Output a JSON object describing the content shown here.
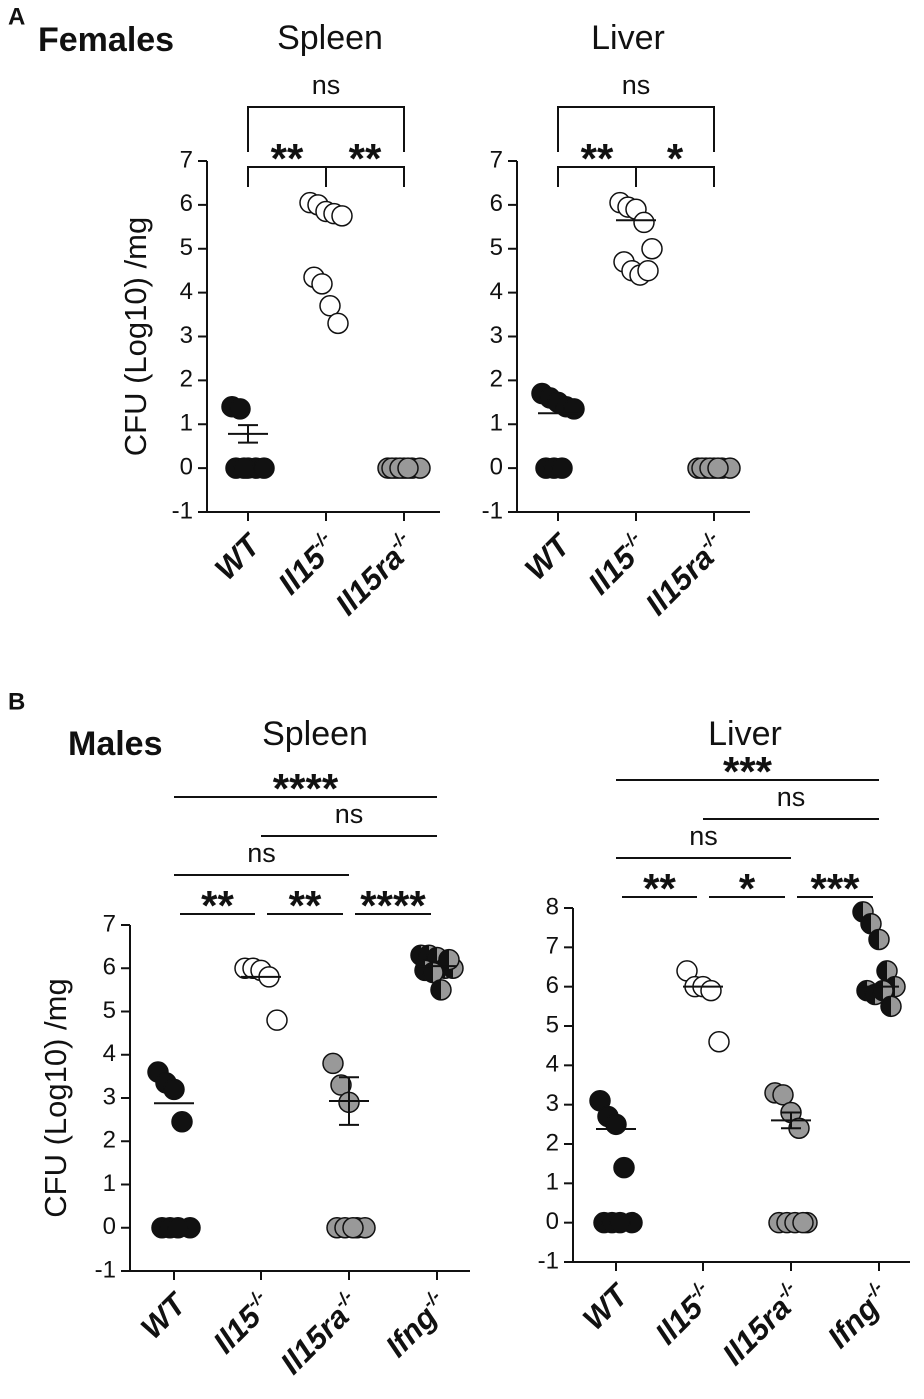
{
  "panels": [
    {
      "letter": "A",
      "title": "Females"
    },
    {
      "letter": "B",
      "title": "Males"
    }
  ],
  "chart_data": [
    {
      "type": "dot",
      "title": "Spleen",
      "ylabel": "CFU (Log10) /mg",
      "categories": [
        "WT",
        "Il15",
        "Il15ra"
      ],
      "category_superscripts": [
        null,
        "-/-",
        "-/-"
      ],
      "colors": [
        "#111111",
        "#ffffff",
        "#999999"
      ],
      "values": [
        [
          1.4,
          1.35,
          0,
          0,
          0,
          0,
          0
        ],
        [
          6.05,
          6.0,
          5.85,
          5.8,
          5.75,
          4.35,
          4.2,
          3.7,
          3.3
        ],
        [
          0,
          0,
          0,
          0,
          0,
          0,
          0,
          0
        ]
      ],
      "means": [
        0.78,
        null,
        null
      ],
      "errors": [
        0.2,
        null,
        null
      ],
      "ylim": [
        -1,
        7
      ],
      "yticks": [
        -1,
        0,
        1,
        2,
        3,
        4,
        5,
        6,
        7
      ],
      "comparisons": [
        {
          "groups": [
            "WT",
            "Il15"
          ],
          "label": "**"
        },
        {
          "groups": [
            "Il15",
            "Il15ra"
          ],
          "label": "**"
        },
        {
          "groups": [
            "WT",
            "Il15ra"
          ],
          "label": "ns"
        }
      ],
      "bracket_style": "drop"
    },
    {
      "type": "dot",
      "title": "Liver",
      "categories": [
        "WT",
        "Il15",
        "Il15ra"
      ],
      "category_superscripts": [
        null,
        "-/-",
        "-/-"
      ],
      "colors": [
        "#111111",
        "#ffffff",
        "#999999"
      ],
      "values": [
        [
          1.7,
          1.6,
          1.5,
          1.4,
          1.35,
          0,
          0,
          0
        ],
        [
          6.05,
          5.95,
          5.9,
          5.6,
          5.0,
          4.7,
          4.5,
          4.4,
          4.5
        ],
        [
          0,
          0,
          0,
          0,
          0,
          0,
          0,
          0
        ]
      ],
      "means": [
        1.25,
        5.65,
        null
      ],
      "errors": [
        null,
        null,
        null
      ],
      "ylim": [
        -1,
        7
      ],
      "yticks": [
        -1,
        0,
        1,
        2,
        3,
        4,
        5,
        6,
        7
      ],
      "comparisons": [
        {
          "groups": [
            "WT",
            "Il15"
          ],
          "label": "**"
        },
        {
          "groups": [
            "Il15",
            "Il15ra"
          ],
          "label": "*"
        },
        {
          "groups": [
            "WT",
            "Il15ra"
          ],
          "label": "ns"
        }
      ],
      "bracket_style": "drop"
    },
    {
      "type": "dot",
      "title": "Spleen",
      "ylabel": "CFU (Log10) /mg",
      "categories": [
        "WT",
        "Il15",
        "Il15ra",
        "Ifng"
      ],
      "category_superscripts": [
        null,
        "-/-",
        "-/-",
        "-/-"
      ],
      "colors": [
        "#111111",
        "#ffffff",
        "#999999",
        [
          "#111111",
          "#999999"
        ]
      ],
      "values": [
        [
          3.6,
          3.35,
          3.2,
          2.45,
          0,
          0,
          0,
          0
        ],
        [
          6.0,
          6.0,
          5.95,
          5.8,
          4.8
        ],
        [
          3.8,
          3.3,
          2.9,
          0,
          0,
          0,
          0,
          0
        ],
        [
          6.3,
          6.3,
          6.25,
          6.0,
          6.0,
          5.95,
          5.9,
          5.5,
          6.2
        ]
      ],
      "means": [
        2.88,
        5.8,
        2.93,
        6.05
      ],
      "errors": [
        null,
        null,
        0.55,
        null
      ],
      "ylim": [
        -1,
        7
      ],
      "yticks": [
        -1,
        0,
        1,
        2,
        3,
        4,
        5,
        6,
        7
      ],
      "comparisons": [
        {
          "groups": [
            "WT",
            "Il15"
          ],
          "label": "**"
        },
        {
          "groups": [
            "Il15",
            "Il15ra"
          ],
          "label": "**"
        },
        {
          "groups": [
            "Il15ra",
            "Ifng"
          ],
          "label": "****"
        },
        {
          "groups": [
            "WT",
            "Il15ra"
          ],
          "label": "ns"
        },
        {
          "groups": [
            "Il15",
            "Ifng"
          ],
          "label": "ns"
        },
        {
          "groups": [
            "WT",
            "Ifng"
          ],
          "label": "****"
        }
      ],
      "bracket_style": "line"
    },
    {
      "type": "dot",
      "title": "Liver",
      "categories": [
        "WT",
        "Il15",
        "Il15ra",
        "Ifng"
      ],
      "category_superscripts": [
        null,
        "-/-",
        "-/-",
        "-/-"
      ],
      "colors": [
        "#111111",
        "#ffffff",
        "#999999",
        [
          "#111111",
          "#999999"
        ]
      ],
      "values": [
        [
          3.1,
          2.7,
          2.5,
          1.4,
          0,
          0,
          0,
          0
        ],
        [
          6.4,
          6.0,
          6.0,
          5.9,
          4.6
        ],
        [
          3.3,
          3.25,
          2.8,
          2.4,
          0,
          0,
          0,
          0,
          0
        ],
        [
          7.9,
          7.6,
          7.2,
          6.4,
          6.0,
          5.9,
          5.8,
          5.9,
          5.5
        ]
      ],
      "means": [
        2.38,
        6.0,
        2.6,
        6.0
      ],
      "errors": [
        null,
        null,
        0.2,
        null
      ],
      "ylim": [
        -1,
        8
      ],
      "yticks": [
        -1,
        0,
        1,
        2,
        3,
        4,
        5,
        6,
        7,
        8
      ],
      "comparisons": [
        {
          "groups": [
            "WT",
            "Il15"
          ],
          "label": "**"
        },
        {
          "groups": [
            "Il15",
            "Il15ra"
          ],
          "label": "*"
        },
        {
          "groups": [
            "Il15ra",
            "Ifng"
          ],
          "label": "***"
        },
        {
          "groups": [
            "WT",
            "Il15ra"
          ],
          "label": "ns"
        },
        {
          "groups": [
            "Il15",
            "Ifng"
          ],
          "label": "ns"
        },
        {
          "groups": [
            "WT",
            "Ifng"
          ],
          "label": "***"
        }
      ],
      "bracket_style": "line"
    }
  ]
}
